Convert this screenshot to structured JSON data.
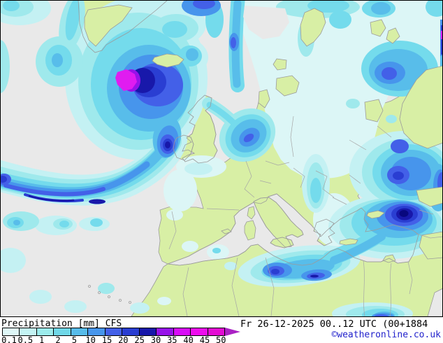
{
  "map": {
    "description": "CFS precipitation forecast map of Europe and North Atlantic",
    "sea_color": "#e9e9e9",
    "land_color": "#d8efa5",
    "coast_color": "#9b9b9b",
    "border_color": "#a6a6a6",
    "frame_color": "#000000",
    "palette": [
      "#dcf6f6",
      "#c4f1f3",
      "#9fe9ec",
      "#74dbec",
      "#58bdea",
      "#4795ec",
      "#4360e8",
      "#2a3ed2",
      "#1818aa",
      "#9712e9",
      "#e01cf0",
      "#08087e"
    ]
  },
  "legend": {
    "title": "Precipitation [mm] CFS",
    "variable": "Precipitation",
    "unit": "mm",
    "model": "CFS",
    "ticks": [
      "0.1",
      "0.5",
      "1",
      "2",
      "5",
      "10",
      "15",
      "20",
      "25",
      "30",
      "35",
      "40",
      "45",
      "50"
    ],
    "cell_colors": [
      "#dff8f8",
      "#c4f4f4",
      "#9cecec",
      "#70d8e8",
      "#57bcea",
      "#4796ec",
      "#4360e8",
      "#2a3ed2",
      "#1818aa",
      "#9712e9",
      "#d80cf8",
      "#ee0cee",
      "#e40cd4"
    ],
    "arrow_color": "#aa22c4"
  },
  "footer": {
    "datetime": "Fr 26-12-2025 00..12 UTC (00+1884",
    "credit": "©weatheronline.co.uk",
    "credit_color": "#2222cc"
  }
}
